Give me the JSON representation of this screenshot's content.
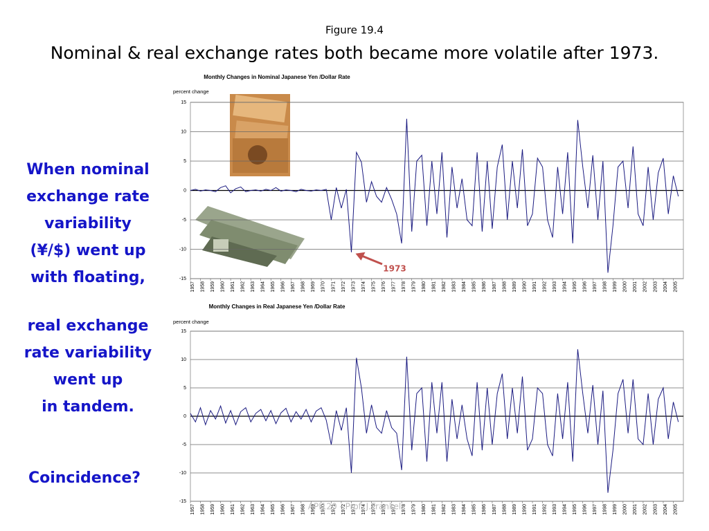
{
  "header": {
    "figure": "Figure 19.4",
    "title": "Nominal & real exchange rates both became more volatile after 1973."
  },
  "side_text": {
    "block1": [
      "When nominal",
      "exchange rate",
      "variability",
      "(¥/$) went up",
      "with floating,"
    ],
    "block2": [
      "real exchange",
      "rate variability",
      "went up",
      "in tandem."
    ],
    "question": "Coincidence?"
  },
  "footer": "API120 - Prof. J.Frankel",
  "chart_data": [
    {
      "type": "line",
      "title": "Monthly Changes in Nominal Japanese Yen /Dollar Rate",
      "y_label": "percent change",
      "color": "#1a1a80",
      "grid": true,
      "xlim": [
        1957,
        2006
      ],
      "ylim": [
        -15,
        15
      ],
      "yticks": [
        -15,
        -10,
        -5,
        0,
        5,
        10,
        15
      ],
      "xticks": [
        1957,
        1958,
        1959,
        1960,
        1961,
        1962,
        1963,
        1964,
        1965,
        1966,
        1967,
        1968,
        1969,
        1970,
        1971,
        1972,
        1973,
        1974,
        1975,
        1976,
        1977,
        1978,
        1979,
        1980,
        1981,
        1982,
        1983,
        1984,
        1985,
        1986,
        1987,
        1988,
        1989,
        1990,
        1991,
        1992,
        1993,
        1994,
        1995,
        1996,
        1997,
        1998,
        1999,
        2000,
        2001,
        2002,
        2003,
        2004,
        2005
      ],
      "x": [
        1957,
        1957.5,
        1958,
        1958.5,
        1959,
        1959.5,
        1960,
        1960.5,
        1961,
        1961.5,
        1962,
        1962.5,
        1963,
        1963.5,
        1964,
        1964.5,
        1965,
        1965.5,
        1966,
        1966.5,
        1967,
        1967.5,
        1968,
        1968.5,
        1969,
        1969.5,
        1970,
        1970.5,
        1971,
        1971.5,
        1972,
        1972.5,
        1973,
        1973.5,
        1974,
        1974.5,
        1975,
        1975.5,
        1976,
        1976.5,
        1977,
        1977.5,
        1978,
        1978.5,
        1979,
        1979.5,
        1980,
        1980.5,
        1981,
        1981.5,
        1982,
        1982.5,
        1983,
        1983.5,
        1984,
        1984.5,
        1985,
        1985.5,
        1986,
        1986.5,
        1987,
        1987.5,
        1988,
        1988.5,
        1989,
        1989.5,
        1990,
        1990.5,
        1991,
        1991.5,
        1992,
        1992.5,
        1993,
        1993.5,
        1994,
        1994.5,
        1995,
        1995.5,
        1996,
        1996.5,
        1997,
        1997.5,
        1998,
        1998.5,
        1999,
        1999.5,
        2000,
        2000.5,
        2001,
        2001.5,
        2002,
        2002.5,
        2003,
        2003.5,
        2004,
        2004.5,
        2005,
        2005.5
      ],
      "values": [
        0,
        0.2,
        -0.1,
        0.1,
        0,
        -0.2,
        0.5,
        0.8,
        -0.4,
        0.3,
        0.6,
        -0.2,
        0,
        0.1,
        -0.1,
        0.2,
        0,
        0.5,
        -0.1,
        0.1,
        0,
        -0.2,
        0.2,
        0,
        -0.1,
        0.1,
        0,
        0.2,
        -5,
        0.5,
        -3,
        0.2,
        -10.5,
        6.5,
        4.8,
        -2,
        1.5,
        -1,
        -2,
        0.5,
        -1.5,
        -4,
        -9,
        12.2,
        -7,
        5,
        6,
        -6,
        5,
        -4,
        6.5,
        -8,
        4,
        -3,
        2,
        -5,
        -6,
        6.5,
        -7,
        5,
        -6.5,
        4,
        7.8,
        -5,
        5,
        -3,
        7,
        -6,
        -4,
        5.5,
        4,
        -5,
        -8,
        4,
        -4,
        6.5,
        -9,
        12,
        4,
        -3,
        6,
        -5,
        5,
        -14,
        -6,
        4,
        5,
        -3,
        7.5,
        -4,
        -6,
        4,
        -5,
        3,
        5.5,
        -4,
        2.5,
        -1
      ],
      "annotation": {
        "text": "1973",
        "x": 1973,
        "y": -10.5
      }
    },
    {
      "type": "line",
      "title": "Monthly Changes in Real Japanese Yen /Dollar Rate",
      "y_label": "percent change",
      "color": "#1a1a80",
      "grid": true,
      "xlim": [
        1957,
        2006
      ],
      "ylim": [
        -15,
        15
      ],
      "yticks": [
        -15,
        -10,
        -5,
        0,
        5,
        10,
        15
      ],
      "xticks": [
        1957,
        1958,
        1959,
        1960,
        1961,
        1962,
        1963,
        1964,
        1965,
        1966,
        1967,
        1968,
        1969,
        1970,
        1971,
        1972,
        1973,
        1974,
        1975,
        1976,
        1977,
        1978,
        1979,
        1980,
        1981,
        1982,
        1983,
        1984,
        1985,
        1986,
        1987,
        1988,
        1989,
        1990,
        1991,
        1992,
        1993,
        1994,
        1995,
        1996,
        1997,
        1998,
        1999,
        2000,
        2001,
        2002,
        2003,
        2004,
        2005
      ],
      "x": [
        1957,
        1957.5,
        1958,
        1958.5,
        1959,
        1959.5,
        1960,
        1960.5,
        1961,
        1961.5,
        1962,
        1962.5,
        1963,
        1963.5,
        1964,
        1964.5,
        1965,
        1965.5,
        1966,
        1966.5,
        1967,
        1967.5,
        1968,
        1968.5,
        1969,
        1969.5,
        1970,
        1970.5,
        1971,
        1971.5,
        1972,
        1972.5,
        1973,
        1973.5,
        1974,
        1974.5,
        1975,
        1975.5,
        1976,
        1976.5,
        1977,
        1977.5,
        1978,
        1978.5,
        1979,
        1979.5,
        1980,
        1980.5,
        1981,
        1981.5,
        1982,
        1982.5,
        1983,
        1983.5,
        1984,
        1984.5,
        1985,
        1985.5,
        1986,
        1986.5,
        1987,
        1987.5,
        1988,
        1988.5,
        1989,
        1989.5,
        1990,
        1990.5,
        1991,
        1991.5,
        1992,
        1992.5,
        1993,
        1993.5,
        1994,
        1994.5,
        1995,
        1995.5,
        1996,
        1996.5,
        1997,
        1997.5,
        1998,
        1998.5,
        1999,
        1999.5,
        2000,
        2000.5,
        2001,
        2001.5,
        2002,
        2002.5,
        2003,
        2003.5,
        2004,
        2004.5,
        2005,
        2005.5
      ],
      "values": [
        0.5,
        -1,
        1.5,
        -1.5,
        1,
        -0.5,
        1.8,
        -1.2,
        1,
        -1.5,
        0.8,
        1.5,
        -1,
        0.5,
        1.2,
        -0.8,
        1,
        -1.3,
        0.6,
        1.4,
        -1,
        0.8,
        -0.5,
        1.2,
        -1,
        0.9,
        1.5,
        -0.7,
        -5,
        1,
        -2.5,
        1.5,
        -10,
        10.3,
        5,
        -3,
        2,
        -2,
        -3,
        1,
        -2,
        -3,
        -9.5,
        10.5,
        -6,
        4,
        5,
        -8,
        6,
        -3,
        6,
        -8,
        3,
        -4,
        2,
        -4,
        -7,
        6,
        -6,
        5,
        -5,
        4,
        7.5,
        -4,
        5,
        -3,
        7,
        -6,
        -4,
        5,
        4,
        -5,
        -7,
        4,
        -4,
        6,
        -8,
        11.8,
        4,
        -3,
        5.5,
        -5,
        4.5,
        -13.5,
        -6,
        4,
        6.5,
        -3,
        6.5,
        -4,
        -5,
        4,
        -5,
        3,
        5,
        -4,
        2.5,
        -1
      ]
    }
  ]
}
